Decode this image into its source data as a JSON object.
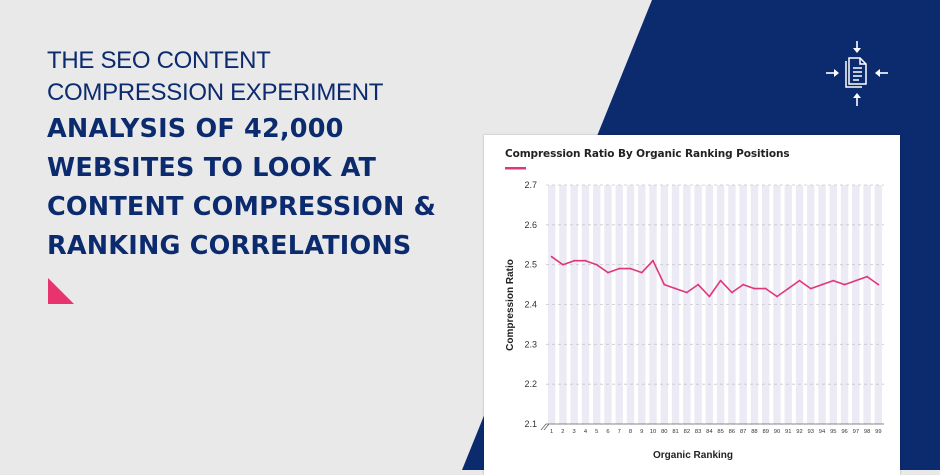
{
  "header": {
    "subtitle_line1": "THE SEO CONTENT",
    "subtitle_line2": "COMPRESSION EXPERIMENT",
    "title_line1": "ANALYSIS OF 42,000",
    "title_line2": "WEBSITES TO LOOK AT",
    "title_line3": "CONTENT COMPRESSION &",
    "title_line4": "RANKING CORRELATIONS"
  },
  "icons": {
    "logo": "document-compress-icon",
    "corner": "triangle-marker-icon"
  },
  "colors": {
    "navy": "#0b2b6e",
    "accent": "#e8336e",
    "background": "#e9e9ea"
  },
  "chart_data": {
    "type": "line",
    "title": "Compression Ratio By Organic Ranking Positions",
    "xlabel": "Organic Ranking",
    "ylabel": "Compression Ratio",
    "ylim": [
      2.1,
      2.7
    ],
    "yticks": [
      "2.7",
      "2.6",
      "2.5",
      "2.4",
      "2.3",
      "2.2",
      "2.1"
    ],
    "grid": true,
    "categories": [
      "1",
      "2",
      "3",
      "4",
      "5",
      "6",
      "7",
      "8",
      "9",
      "10",
      "80",
      "81",
      "82",
      "83",
      "84",
      "85",
      "86",
      "87",
      "88",
      "89",
      "90",
      "91",
      "92",
      "93",
      "94",
      "95",
      "96",
      "97",
      "98",
      "99"
    ],
    "values": [
      2.52,
      2.5,
      2.51,
      2.51,
      2.5,
      2.48,
      2.49,
      2.49,
      2.48,
      2.51,
      2.45,
      2.44,
      2.43,
      2.45,
      2.42,
      2.46,
      2.43,
      2.45,
      2.44,
      2.44,
      2.42,
      2.44,
      2.46,
      2.44,
      2.45,
      2.46,
      2.45,
      2.46,
      2.47,
      2.45
    ],
    "line_color": "#e0357a"
  }
}
